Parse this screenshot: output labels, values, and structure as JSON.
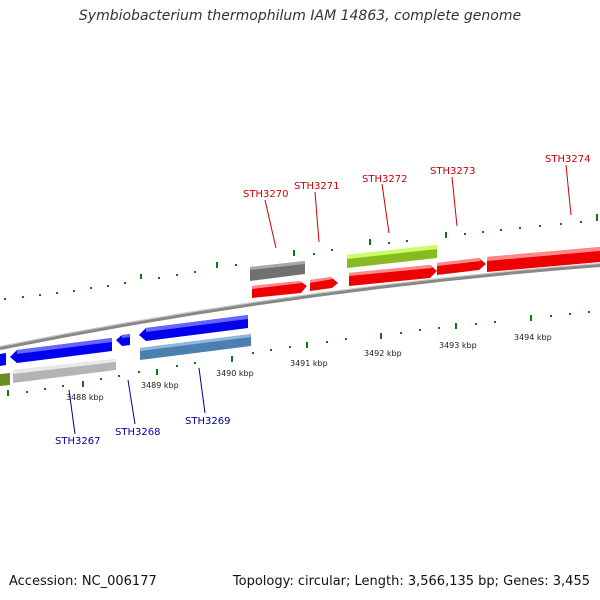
{
  "title": "Symbiobacterium thermophilum IAM 14863, complete genome",
  "footer": {
    "accession": "Accession: NC_006177",
    "summary": "Topology: circular; Length: 3,566,135 bp; Genes: 3,455"
  },
  "colors": {
    "forward_gene": "#ff0000",
    "reverse_gene": "#0000ee",
    "top_label": "#cc0000",
    "bottom_label": "#000099",
    "tick": "#117711",
    "backbone": "#888888"
  },
  "ticks": [
    {
      "label": "3488 kbp"
    },
    {
      "label": "3489 kbp"
    },
    {
      "label": "3490 kbp"
    },
    {
      "label": "3491 kbp"
    },
    {
      "label": "3492 kbp"
    },
    {
      "label": "3493 kbp"
    },
    {
      "label": "3494 kbp"
    }
  ],
  "genes_top": [
    {
      "id": "STH3270"
    },
    {
      "id": "STH3271"
    },
    {
      "id": "STH3272"
    },
    {
      "id": "STH3273"
    },
    {
      "id": "STH3274"
    }
  ],
  "genes_bottom": [
    {
      "id": "STH3267"
    },
    {
      "id": "STH3268"
    },
    {
      "id": "STH3269"
    }
  ]
}
